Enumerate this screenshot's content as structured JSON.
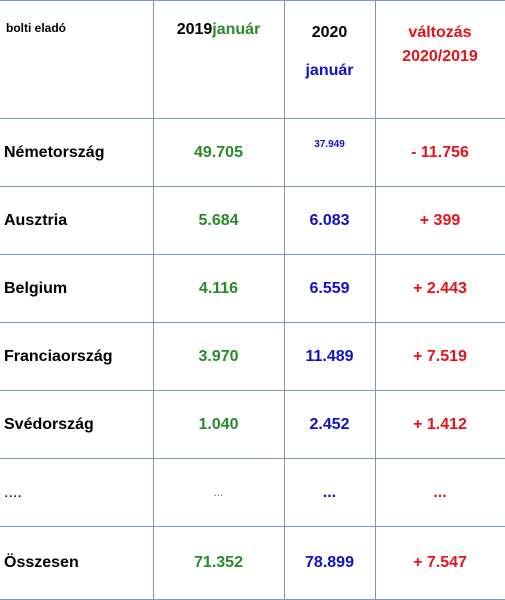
{
  "header": {
    "label": "bolti eladó",
    "col_2019_year": "2019",
    "col_2019_month": "január",
    "col_2020_year": "2020",
    "col_2020_month": "január",
    "col_change_line1": "változás",
    "col_change_line2": "2020/2019"
  },
  "rows": [
    {
      "country": "Németország",
      "v2019": "49.705",
      "v2020": "37.949",
      "change": "- 11.756"
    },
    {
      "country": "Ausztria",
      "v2019": "5.684",
      "v2020": "6.083",
      "change": "+ 399"
    },
    {
      "country": "Belgium",
      "v2019": "4.116",
      "v2020": "6.559",
      "change": "+ 2.443"
    },
    {
      "country": "Franciaország",
      "v2019": "3.970",
      "v2020": "11.489",
      "change": "+ 7.519"
    },
    {
      "country": "Svédország",
      "v2019": "1.040",
      "v2020": "2.452",
      "change": "+ 1.412"
    },
    {
      "country": "....",
      "v2019": "...",
      "v2020": "...",
      "change": "..."
    },
    {
      "country": "Összesen",
      "v2019": "71.352",
      "v2020": "78.899",
      "change": "+ 7.547"
    }
  ],
  "colors": {
    "value_2019": "#2a8a2a",
    "value_2020": "#1010c8",
    "change": "#e8121b",
    "border": "#7a96b4"
  }
}
